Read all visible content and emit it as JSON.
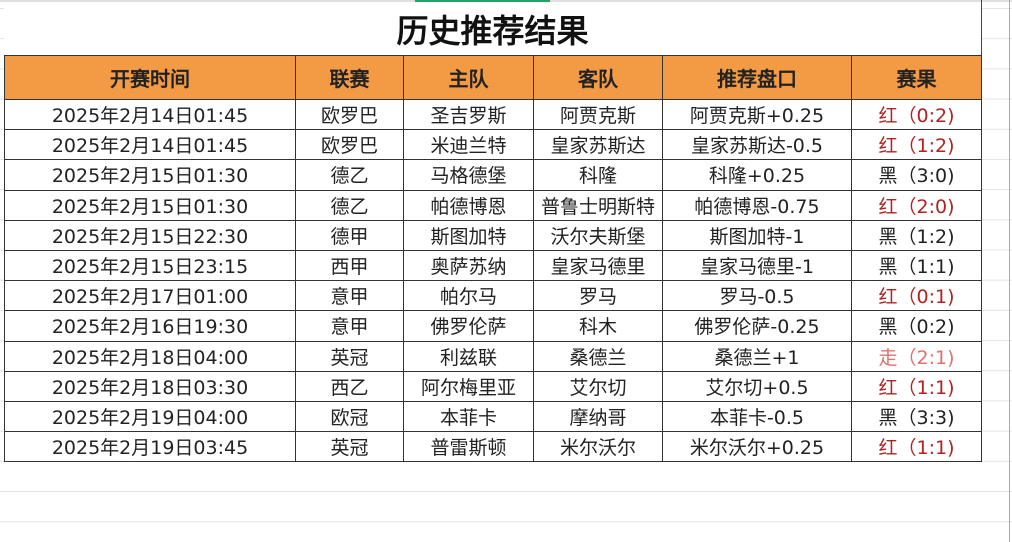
{
  "title": "历史推荐结果",
  "columns": [
    "开赛时间",
    "联赛",
    "主队",
    "客队",
    "推荐盘口",
    "赛果"
  ],
  "colors": {
    "header_bg": "#f39a45",
    "red": "#b22222",
    "walk": "#e07070",
    "black": "#222222"
  },
  "rows": [
    {
      "time": "2025年2月14日01:45",
      "league": "欧罗巴",
      "home": "圣吉罗斯",
      "away": "阿贾克斯",
      "pick": "阿贾克斯+0.25",
      "result": "红（0:2)",
      "status": "red"
    },
    {
      "time": "2025年2月14日01:45",
      "league": "欧罗巴",
      "home": "米迪兰特",
      "away": "皇家苏斯达",
      "pick": "皇家苏斯达-0.5",
      "result": "红（1:2)",
      "status": "red"
    },
    {
      "time": "2025年2月15日01:30",
      "league": "德乙",
      "home": "马格德堡",
      "away": "科隆",
      "pick": "科隆+0.25",
      "result": "黑（3:0)",
      "status": "black"
    },
    {
      "time": "2025年2月15日01:30",
      "league": "德乙",
      "home": "帕德博恩",
      "away": "普鲁士明斯特",
      "pick": "帕德博恩-0.75",
      "result": "红（2:0)",
      "status": "red"
    },
    {
      "time": "2025年2月15日22:30",
      "league": "德甲",
      "home": "斯图加特",
      "away": "沃尔夫斯堡",
      "pick": "斯图加特-1",
      "result": "黑（1:2)",
      "status": "black"
    },
    {
      "time": "2025年2月15日23:15",
      "league": "西甲",
      "home": "奥萨苏纳",
      "away": "皇家马德里",
      "pick": "皇家马德里-1",
      "result": "黑（1:1)",
      "status": "black"
    },
    {
      "time": "2025年2月17日01:00",
      "league": "意甲",
      "home": "帕尔马",
      "away": "罗马",
      "pick": "罗马-0.5",
      "result": "红（0:1)",
      "status": "red"
    },
    {
      "time": "2025年2月16日19:30",
      "league": "意甲",
      "home": "佛罗伦萨",
      "away": "科木",
      "pick": "佛罗伦萨-0.25",
      "result": "黑（0:2)",
      "status": "black"
    },
    {
      "time": "2025年2月18日04:00",
      "league": "英冠",
      "home": "利兹联",
      "away": "桑德兰",
      "pick": "桑德兰+1",
      "result": "走（2:1)",
      "status": "walk"
    },
    {
      "time": "2025年2月18日03:30",
      "league": "西乙",
      "home": "阿尔梅里亚",
      "away": "艾尔切",
      "pick": "艾尔切+0.5",
      "result": "红（1:1)",
      "status": "red"
    },
    {
      "time": "2025年2月19日04:00",
      "league": "欧冠",
      "home": "本菲卡",
      "away": "摩纳哥",
      "pick": "本菲卡-0.5",
      "result": "黑（3:3)",
      "status": "black"
    },
    {
      "time": "2025年2月19日03:45",
      "league": "英冠",
      "home": "普雷斯顿",
      "away": "米尔沃尔",
      "pick": "米尔沃尔+0.25",
      "result": "红（1:1)",
      "status": "red"
    }
  ]
}
